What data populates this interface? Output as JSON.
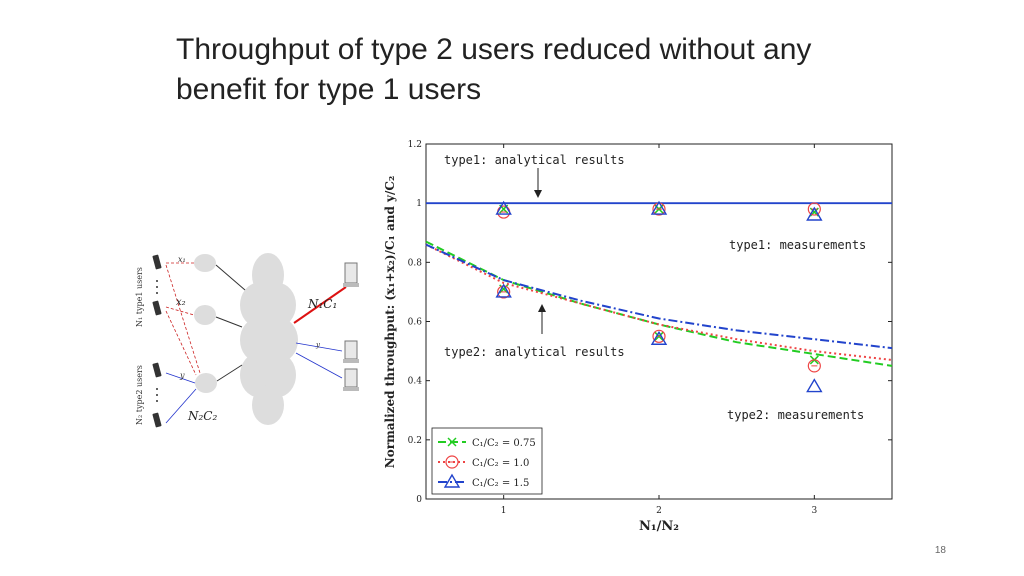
{
  "slide": {
    "title": "Throughput of type 2 users reduced without any benefit for type 1 users",
    "page_number": "18"
  },
  "network": {
    "label_type1_users": "N₁ type1 users",
    "label_type2_users": "N₂ type2 users",
    "label_x1": "x₁",
    "label_x2": "x₂",
    "label_y": "y",
    "label_n1c1": "N₁C₁",
    "label_n2c2": "N₂C₂",
    "link_color_type1": "#cc2222",
    "link_color_type2": "#2233cc"
  },
  "chart_data": {
    "type": "line",
    "xlabel": "N₁/N₂",
    "ylabel": "Normalized throughput: (x₁+x₂)/C₁ and y/C₂",
    "xlim": [
      0.5,
      3.5
    ],
    "ylim": [
      0,
      1.2
    ],
    "xticks": [
      "1",
      "2",
      "3"
    ],
    "yticks": [
      "0",
      "0.2",
      "0.4",
      "0.6",
      "0.8",
      "1",
      "1.2"
    ],
    "grid": false,
    "legend_position": "bottom-left",
    "series": [
      {
        "name": "C₁/C₂ = 0.75",
        "color": "#22cc22",
        "style": "dash",
        "marker": "x",
        "analytical_type2": {
          "x": [
            0.5,
            1,
            1.5,
            2,
            2.5,
            3,
            3.5
          ],
          "y": [
            0.87,
            0.74,
            0.66,
            0.59,
            0.53,
            0.49,
            0.45
          ]
        },
        "measured_type1": {
          "x": [
            1,
            2,
            3
          ],
          "y": [
            0.98,
            0.98,
            0.97
          ]
        },
        "measured_type2": {
          "x": [
            1,
            2,
            3
          ],
          "y": [
            0.71,
            0.55,
            0.47
          ]
        }
      },
      {
        "name": "C₁/C₂ = 1.0",
        "color": "#ee4444",
        "style": "dot",
        "marker": "circle",
        "analytical_type2": {
          "x": [
            0.5,
            1,
            1.5,
            2,
            2.5,
            3,
            3.5
          ],
          "y": [
            0.86,
            0.73,
            0.66,
            0.59,
            0.54,
            0.5,
            0.47
          ]
        },
        "measured_type1": {
          "x": [
            1,
            2,
            3
          ],
          "y": [
            0.97,
            0.98,
            0.98
          ]
        },
        "measured_type2": {
          "x": [
            1,
            2,
            3
          ],
          "y": [
            0.7,
            0.55,
            0.45
          ]
        }
      },
      {
        "name": "C₁/C₂ = 1.5",
        "color": "#2244cc",
        "style": "dashdot",
        "marker": "triangle",
        "analytical_type2": {
          "x": [
            0.5,
            1,
            1.5,
            2,
            2.5,
            3,
            3.5
          ],
          "y": [
            0.86,
            0.74,
            0.67,
            0.61,
            0.57,
            0.54,
            0.51
          ]
        },
        "measured_type1": {
          "x": [
            1,
            2,
            3
          ],
          "y": [
            0.98,
            0.98,
            0.96
          ]
        },
        "measured_type2": {
          "x": [
            1,
            2,
            3
          ],
          "y": [
            0.7,
            0.54,
            0.38
          ]
        }
      }
    ],
    "type1_analytical": {
      "y": 1.0,
      "color": "#2244cc"
    },
    "annotations": {
      "type1_analytical": "type1: analytical results",
      "type1_measurements": "type1: measurements",
      "type2_analytical": "type2: analytical results",
      "type2_measurements": "type2: measurements"
    }
  }
}
